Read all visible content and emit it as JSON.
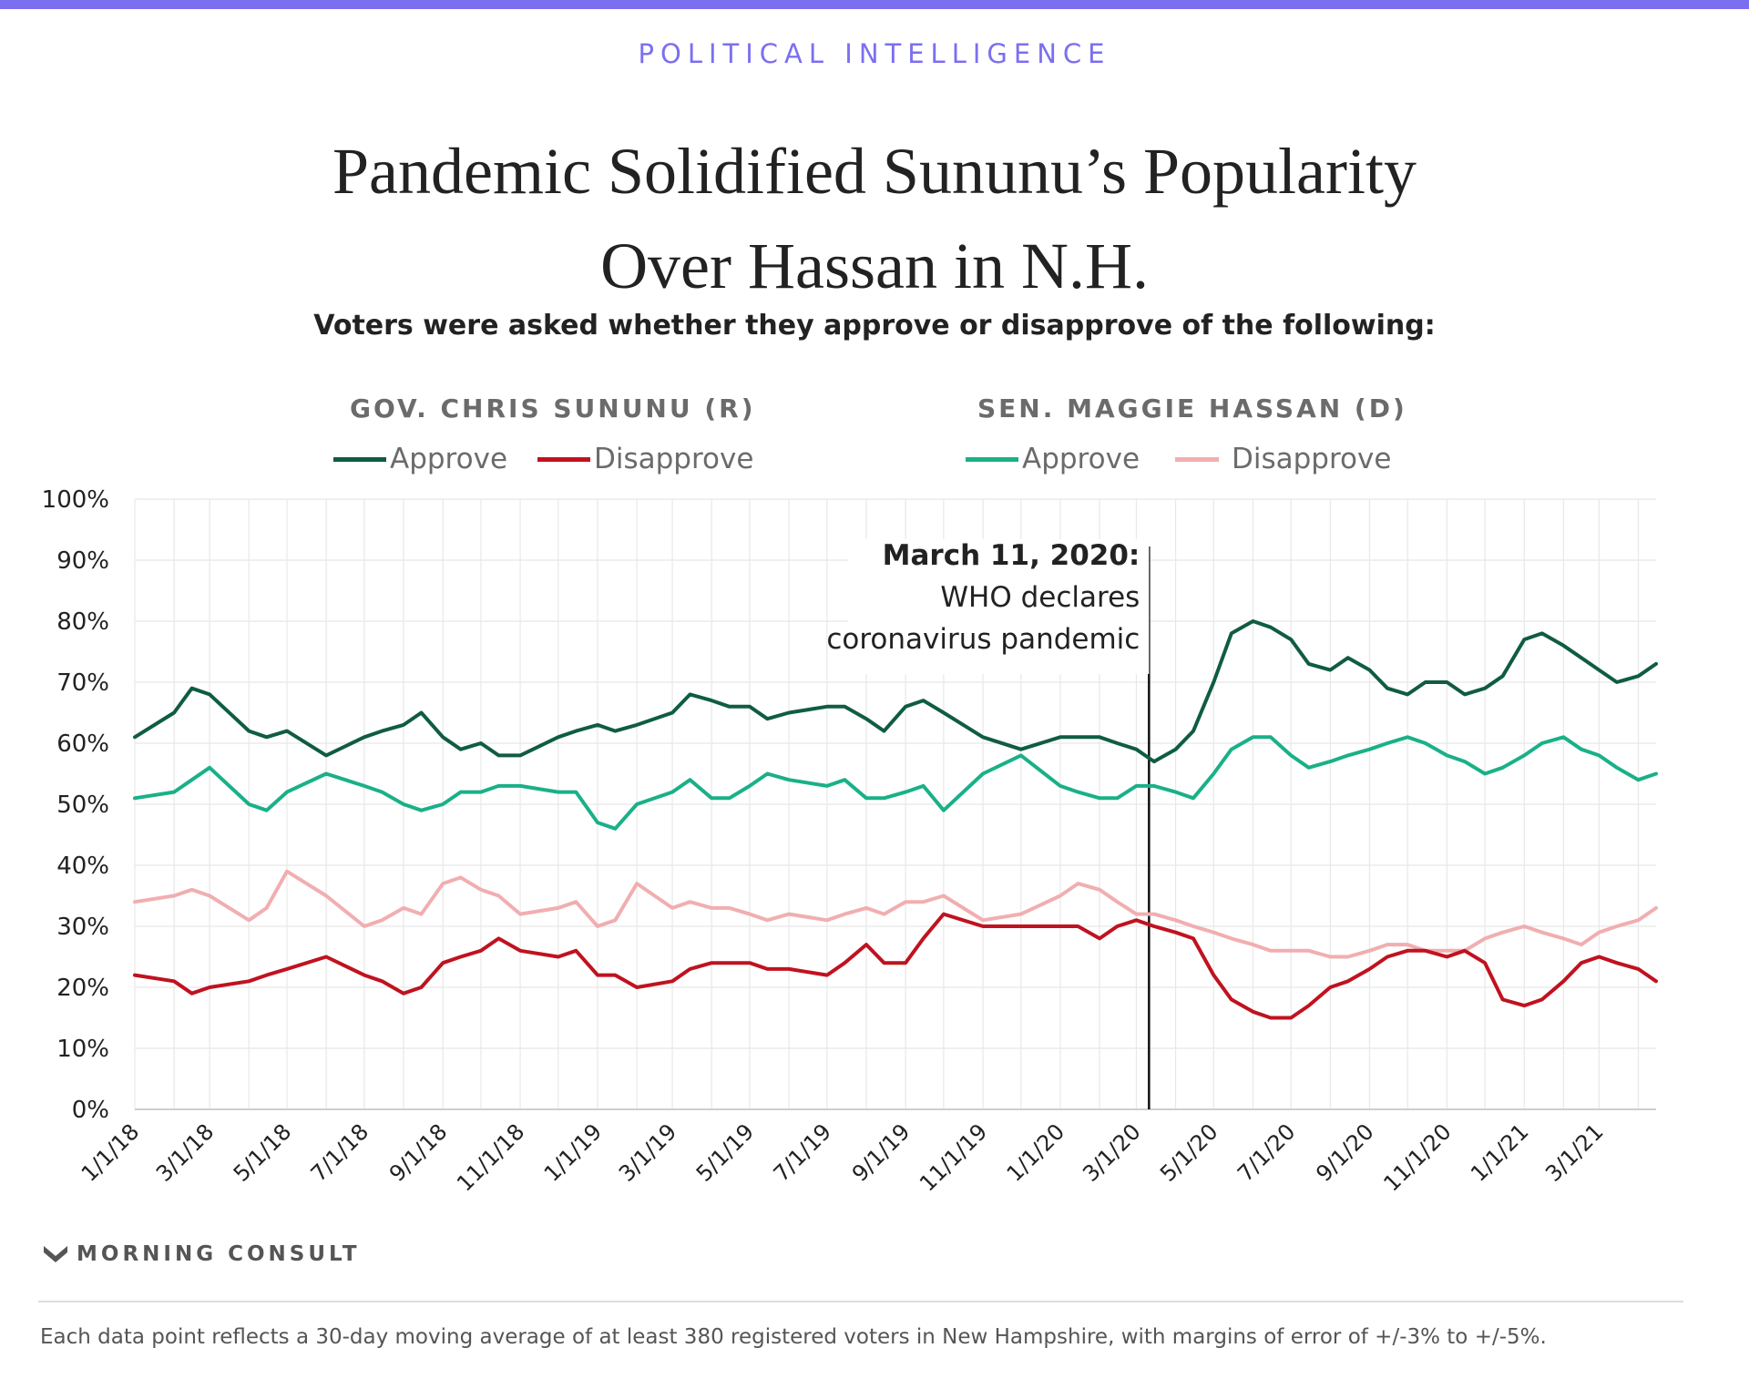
{
  "header": {
    "kicker": "POLITICAL INTELLIGENCE",
    "title_line1": "Pandemic Solidified Sununu’s Popularity",
    "title_line2": "Over Hassan in N.H.",
    "subtitle": "Voters were asked whether they approve or disapprove of the following:"
  },
  "colors": {
    "brand_bar": "#7b6ff0",
    "kicker": "#7b6ff0",
    "sununu_approve": "#0f5c44",
    "sununu_disapprove": "#c0121f",
    "hassan_approve": "#1ab088",
    "hassan_disapprove": "#f1aeb0",
    "grid": "#e8e8e8"
  },
  "legend": {
    "sununu": {
      "title": "GOV. CHRIS SUNUNU (R)",
      "approve": "Approve",
      "disapprove": "Disapprove"
    },
    "hassan": {
      "title": "SEN. MAGGIE HASSAN (D)",
      "approve": "Approve",
      "disapprove": "Disapprove"
    }
  },
  "chart_data": {
    "type": "line",
    "x_range": [
      "1/1/18",
      "4/15/21"
    ],
    "ylim": [
      0,
      100
    ],
    "y_ticks": [
      "0%",
      "10%",
      "20%",
      "30%",
      "40%",
      "50%",
      "60%",
      "70%",
      "80%",
      "90%",
      "100%"
    ],
    "x_ticks": [
      "1/1/18",
      "3/1/18",
      "5/1/18",
      "7/1/18",
      "9/1/18",
      "11/1/18",
      "1/1/19",
      "3/1/19",
      "5/1/19",
      "7/1/19",
      "9/1/19",
      "11/1/19",
      "1/1/20",
      "3/1/20",
      "5/1/20",
      "7/1/20",
      "9/1/20",
      "11/1/20",
      "1/1/21",
      "3/1/21"
    ],
    "grid": true,
    "annotation": {
      "date": "3/11/20",
      "bold": "March 11, 2020:",
      "line2": "WHO declares",
      "line3": "coronavirus pandemic"
    },
    "series": [
      {
        "name": "Sununu Approve",
        "x": [
          "1/1/18",
          "2/1/18",
          "2/15/18",
          "3/1/18",
          "4/1/18",
          "4/15/18",
          "5/1/18",
          "6/1/18",
          "7/1/18",
          "7/15/18",
          "8/1/18",
          "8/15/18",
          "9/1/18",
          "9/15/18",
          "10/1/18",
          "10/15/18",
          "11/1/18",
          "12/1/18",
          "12/15/18",
          "1/1/19",
          "1/15/19",
          "2/1/19",
          "3/1/19",
          "3/15/19",
          "4/1/19",
          "4/15/19",
          "5/1/19",
          "5/15/19",
          "6/1/19",
          "7/1/19",
          "7/15/19",
          "8/1/19",
          "8/15/19",
          "9/1/19",
          "9/15/19",
          "10/1/19",
          "11/1/19",
          "12/1/19",
          "1/1/20",
          "1/15/20",
          "2/1/20",
          "2/15/20",
          "3/1/20",
          "3/15/20",
          "4/1/20",
          "4/15/20",
          "5/1/20",
          "5/15/20",
          "6/1/20",
          "6/15/20",
          "7/1/20",
          "7/15/20",
          "8/1/20",
          "8/15/20",
          "9/1/20",
          "9/15/20",
          "10/1/20",
          "10/15/20",
          "11/1/20",
          "11/15/20",
          "12/1/20",
          "12/15/20",
          "1/1/21",
          "1/15/21",
          "2/1/21",
          "2/15/21",
          "3/1/21",
          "3/15/21",
          "4/1/21",
          "4/15/21"
        ],
        "values": [
          61,
          65,
          69,
          68,
          62,
          61,
          62,
          58,
          61,
          62,
          63,
          65,
          61,
          59,
          60,
          58,
          58,
          61,
          62,
          63,
          62,
          63,
          65,
          68,
          67,
          66,
          66,
          64,
          65,
          66,
          66,
          64,
          62,
          66,
          67,
          65,
          61,
          59,
          61,
          61,
          61,
          60,
          59,
          57,
          59,
          62,
          70,
          78,
          80,
          79,
          77,
          73,
          72,
          74,
          72,
          69,
          68,
          70,
          70,
          68,
          69,
          71,
          77,
          78,
          76,
          74,
          72,
          70,
          71,
          73
        ]
      },
      {
        "name": "Sununu Disapprove",
        "x": [
          "1/1/18",
          "2/1/18",
          "2/15/18",
          "3/1/18",
          "4/1/18",
          "4/15/18",
          "5/1/18",
          "6/1/18",
          "7/1/18",
          "7/15/18",
          "8/1/18",
          "8/15/18",
          "9/1/18",
          "9/15/18",
          "10/1/18",
          "10/15/18",
          "11/1/18",
          "12/1/18",
          "12/15/18",
          "1/1/19",
          "1/15/19",
          "2/1/19",
          "3/1/19",
          "3/15/19",
          "4/1/19",
          "4/15/19",
          "5/1/19",
          "5/15/19",
          "6/1/19",
          "7/1/19",
          "7/15/19",
          "8/1/19",
          "8/15/19",
          "9/1/19",
          "9/15/19",
          "10/1/19",
          "11/1/19",
          "12/1/19",
          "1/1/20",
          "1/15/20",
          "2/1/20",
          "2/15/20",
          "3/1/20",
          "3/15/20",
          "4/1/20",
          "4/15/20",
          "5/1/20",
          "5/15/20",
          "6/1/20",
          "6/15/20",
          "7/1/20",
          "7/15/20",
          "8/1/20",
          "8/15/20",
          "9/1/20",
          "9/15/20",
          "10/1/20",
          "10/15/20",
          "11/1/20",
          "11/15/20",
          "12/1/20",
          "12/15/20",
          "1/1/21",
          "1/15/21",
          "2/1/21",
          "2/15/21",
          "3/1/21",
          "3/15/21",
          "4/1/21",
          "4/15/21"
        ],
        "values": [
          22,
          21,
          19,
          20,
          21,
          22,
          23,
          25,
          22,
          21,
          19,
          20,
          24,
          25,
          26,
          28,
          26,
          25,
          26,
          22,
          22,
          20,
          21,
          23,
          24,
          24,
          24,
          23,
          23,
          22,
          24,
          27,
          24,
          24,
          28,
          32,
          30,
          30,
          30,
          30,
          28,
          30,
          31,
          30,
          29,
          28,
          22,
          18,
          16,
          15,
          15,
          17,
          20,
          21,
          23,
          25,
          26,
          26,
          25,
          26,
          24,
          18,
          17,
          18,
          21,
          24,
          25,
          24,
          23,
          21
        ]
      },
      {
        "name": "Hassan Approve",
        "x": [
          "1/1/18",
          "2/1/18",
          "2/15/18",
          "3/1/18",
          "4/1/18",
          "4/15/18",
          "5/1/18",
          "6/1/18",
          "7/1/18",
          "7/15/18",
          "8/1/18",
          "8/15/18",
          "9/1/18",
          "9/15/18",
          "10/1/18",
          "10/15/18",
          "11/1/18",
          "12/1/18",
          "12/15/18",
          "1/1/19",
          "1/15/19",
          "2/1/19",
          "3/1/19",
          "3/15/19",
          "4/1/19",
          "4/15/19",
          "5/1/19",
          "5/15/19",
          "6/1/19",
          "7/1/19",
          "7/15/19",
          "8/1/19",
          "8/15/19",
          "9/1/19",
          "9/15/19",
          "10/1/19",
          "11/1/19",
          "12/1/19",
          "1/1/20",
          "1/15/20",
          "2/1/20",
          "2/15/20",
          "3/1/20",
          "3/15/20",
          "4/1/20",
          "4/15/20",
          "5/1/20",
          "5/15/20",
          "6/1/20",
          "6/15/20",
          "7/1/20",
          "7/15/20",
          "8/1/20",
          "8/15/20",
          "9/1/20",
          "9/15/20",
          "10/1/20",
          "10/15/20",
          "11/1/20",
          "11/15/20",
          "12/1/20",
          "12/15/20",
          "1/1/21",
          "1/15/21",
          "2/1/21",
          "2/15/21",
          "3/1/21",
          "3/15/21",
          "4/1/21",
          "4/15/21"
        ],
        "values": [
          51,
          52,
          54,
          56,
          50,
          49,
          52,
          55,
          53,
          52,
          50,
          49,
          50,
          52,
          52,
          53,
          53,
          52,
          52,
          47,
          46,
          50,
          52,
          54,
          51,
          51,
          53,
          55,
          54,
          53,
          54,
          51,
          51,
          52,
          53,
          49,
          55,
          58,
          53,
          52,
          51,
          51,
          53,
          53,
          52,
          51,
          55,
          59,
          61,
          61,
          58,
          56,
          57,
          58,
          59,
          60,
          61,
          60,
          58,
          57,
          55,
          56,
          58,
          60,
          61,
          59,
          58,
          56,
          54,
          55
        ]
      },
      {
        "name": "Hassan Disapprove",
        "x": [
          "1/1/18",
          "2/1/18",
          "2/15/18",
          "3/1/18",
          "4/1/18",
          "4/15/18",
          "5/1/18",
          "6/1/18",
          "7/1/18",
          "7/15/18",
          "8/1/18",
          "8/15/18",
          "9/1/18",
          "9/15/18",
          "10/1/18",
          "10/15/18",
          "11/1/18",
          "12/1/18",
          "12/15/18",
          "1/1/19",
          "1/15/19",
          "2/1/19",
          "3/1/19",
          "3/15/19",
          "4/1/19",
          "4/15/19",
          "5/1/19",
          "5/15/19",
          "6/1/19",
          "7/1/19",
          "7/15/19",
          "8/1/19",
          "8/15/19",
          "9/1/19",
          "9/15/19",
          "10/1/19",
          "11/1/19",
          "12/1/19",
          "1/1/20",
          "1/15/20",
          "2/1/20",
          "2/15/20",
          "3/1/20",
          "3/15/20",
          "4/1/20",
          "4/15/20",
          "5/1/20",
          "5/15/20",
          "6/1/20",
          "6/15/20",
          "7/1/20",
          "7/15/20",
          "8/1/20",
          "8/15/20",
          "9/1/20",
          "9/15/20",
          "10/1/20",
          "10/15/20",
          "11/1/20",
          "11/15/20",
          "12/1/20",
          "12/15/20",
          "1/1/21",
          "1/15/21",
          "2/1/21",
          "2/15/21",
          "3/1/21",
          "3/15/21",
          "4/1/21",
          "4/15/21"
        ],
        "values": [
          34,
          35,
          36,
          35,
          31,
          33,
          39,
          35,
          30,
          31,
          33,
          32,
          37,
          38,
          36,
          35,
          32,
          33,
          34,
          30,
          31,
          37,
          33,
          34,
          33,
          33,
          32,
          31,
          32,
          31,
          32,
          33,
          32,
          34,
          34,
          35,
          31,
          32,
          35,
          37,
          36,
          34,
          32,
          32,
          31,
          30,
          29,
          28,
          27,
          26,
          26,
          26,
          25,
          25,
          26,
          27,
          27,
          26,
          26,
          26,
          28,
          29,
          30,
          29,
          28,
          27,
          29,
          30,
          31,
          33
        ]
      }
    ]
  },
  "footer": {
    "logo": "MORNING CONSULT",
    "note": "Each data point reflects a 30-day moving average of at least 380 registered voters in New Hampshire, with margins of error of +/-3% to +/-5%."
  }
}
